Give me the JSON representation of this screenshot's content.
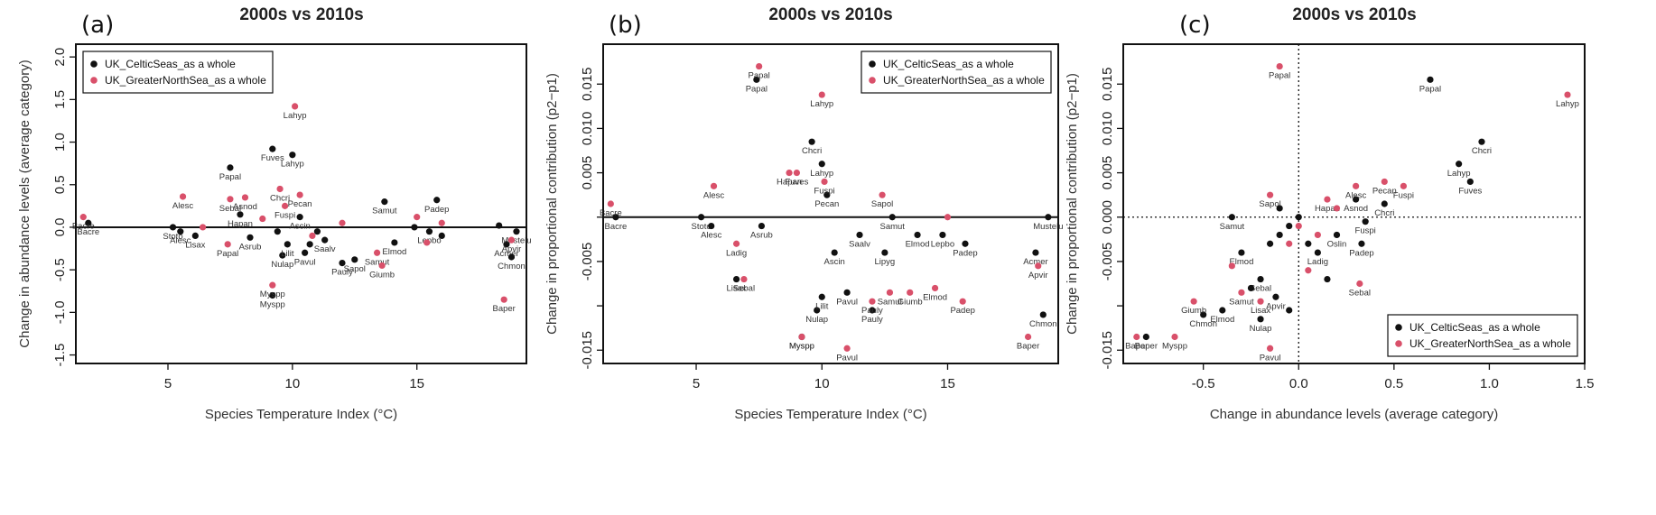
{
  "colors": {
    "celtic": "#111111",
    "northsea": "#d9506a",
    "axis": "#111111",
    "text": "#333333"
  },
  "legend": {
    "celtic": "UK_CelticSeas_as a whole",
    "northsea": "UK_GreaterNorthSea_as a whole"
  },
  "chart_data": [
    {
      "type": "scatter",
      "panel_label": "(a)",
      "title": "2000s vs 2010s",
      "xlabel": "Species Temperature Index (°C)",
      "ylabel": "Change in abundance levels (average category)",
      "xlim": [
        1.3,
        19.4
      ],
      "ylim": [
        -1.6,
        2.15
      ],
      "xticks": [
        5,
        10,
        15
      ],
      "yticks": [
        -1.5,
        -1.0,
        -0.5,
        0.0,
        0.5,
        1.0,
        1.5,
        2.0
      ],
      "yticklabels": [
        "-1.5",
        "-1.0",
        "-0.5",
        "0.0",
        "0.5",
        "1.0",
        "1.5",
        "2.0"
      ],
      "hline": 0,
      "legend_position": "top-left",
      "series": [
        {
          "name": "UK_CelticSeas_as a whole",
          "color": "celtic",
          "points": [
            {
              "x": 1.8,
              "y": 0.05,
              "label": "Bacre"
            },
            {
              "x": 5.2,
              "y": 0.0,
              "label": "Stoto"
            },
            {
              "x": 5.5,
              "y": -0.05,
              "label": "Alesc"
            },
            {
              "x": 6.1,
              "y": -0.1,
              "label": "Lisax"
            },
            {
              "x": 7.5,
              "y": 0.7,
              "label": "Papal"
            },
            {
              "x": 7.9,
              "y": 0.15,
              "label": "Hapan"
            },
            {
              "x": 8.3,
              "y": -0.12,
              "label": "Asrub"
            },
            {
              "x": 9.2,
              "y": 0.92,
              "label": "Fuves"
            },
            {
              "x": 9.4,
              "y": -0.05
            },
            {
              "x": 9.6,
              "y": -0.33,
              "label": "Nulap"
            },
            {
              "x": 9.8,
              "y": -0.2,
              "label": "Lilit"
            },
            {
              "x": 9.2,
              "y": -0.8,
              "label": "Myspp"
            },
            {
              "x": 10.0,
              "y": 0.85,
              "label": "Lahyp"
            },
            {
              "x": 10.3,
              "y": 0.12,
              "label": "Ascin"
            },
            {
              "x": 10.5,
              "y": -0.3,
              "label": "Pavul"
            },
            {
              "x": 10.7,
              "y": -0.2
            },
            {
              "x": 11.0,
              "y": -0.05
            },
            {
              "x": 11.3,
              "y": -0.15,
              "label": "Saalv"
            },
            {
              "x": 12.0,
              "y": -0.42,
              "label": "Pauly"
            },
            {
              "x": 12.5,
              "y": -0.38,
              "label": "Sapol"
            },
            {
              "x": 13.7,
              "y": 0.3,
              "label": "Samut"
            },
            {
              "x": 14.1,
              "y": -0.18,
              "label": "Elmod"
            },
            {
              "x": 14.9,
              "y": 0.0
            },
            {
              "x": 15.5,
              "y": -0.05,
              "label": "Lepbo"
            },
            {
              "x": 15.8,
              "y": 0.32,
              "label": "Padep"
            },
            {
              "x": 16.0,
              "y": -0.1
            },
            {
              "x": 18.3,
              "y": 0.02
            },
            {
              "x": 18.6,
              "y": -0.2,
              "label": "Acmer"
            },
            {
              "x": 18.8,
              "y": -0.35,
              "label": "Chmon"
            },
            {
              "x": 19.0,
              "y": -0.05,
              "label": "Mustelu"
            }
          ]
        },
        {
          "name": "UK_GreaterNorthSea_as a whole",
          "color": "northsea",
          "points": [
            {
              "x": 1.6,
              "y": 0.12,
              "label": "Bacre"
            },
            {
              "x": 5.6,
              "y": 0.36,
              "label": "Alesc"
            },
            {
              "x": 6.4,
              "y": 0.0
            },
            {
              "x": 7.4,
              "y": -0.2,
              "label": "Papal"
            },
            {
              "x": 7.5,
              "y": 0.33,
              "label": "Sebal"
            },
            {
              "x": 8.1,
              "y": 0.35,
              "label": "Asnod"
            },
            {
              "x": 8.8,
              "y": 0.1
            },
            {
              "x": 9.5,
              "y": 0.45,
              "label": "Chcri"
            },
            {
              "x": 9.7,
              "y": 0.25,
              "label": "Fuspi"
            },
            {
              "x": 10.1,
              "y": 1.42,
              "label": "Lahyp"
            },
            {
              "x": 10.3,
              "y": 0.38,
              "label": "Pecan"
            },
            {
              "x": 9.2,
              "y": -0.68,
              "label": "Myspp"
            },
            {
              "x": 10.8,
              "y": -0.1
            },
            {
              "x": 12.0,
              "y": 0.05
            },
            {
              "x": 13.4,
              "y": -0.3,
              "label": "Samut"
            },
            {
              "x": 13.6,
              "y": -0.45,
              "label": "Giumb"
            },
            {
              "x": 15.0,
              "y": 0.12
            },
            {
              "x": 15.4,
              "y": -0.18
            },
            {
              "x": 16.0,
              "y": 0.05
            },
            {
              "x": 18.5,
              "y": -0.85,
              "label": "Baper"
            },
            {
              "x": 18.8,
              "y": -0.15,
              "label": "Apvir"
            }
          ]
        }
      ]
    },
    {
      "type": "scatter",
      "panel_label": "(b)",
      "title": "2000s vs 2010s",
      "xlabel": "Species Temperature Index (°C)",
      "ylabel": "Change in proportional contribution (p2−p1)",
      "xlim": [
        1.3,
        19.4
      ],
      "ylim": [
        -0.0165,
        0.0195
      ],
      "xticks": [
        5,
        10,
        15
      ],
      "yticks": [
        -0.015,
        -0.01,
        -0.005,
        0.0,
        0.005,
        0.01,
        0.015
      ],
      "yticklabels": [
        "-0.015",
        "",
        "-0.005",
        "",
        "0.005",
        "0.010",
        "0.015"
      ],
      "hline": 0,
      "legend_position": "top-right",
      "series": [
        {
          "name": "UK_CelticSeas_as a whole",
          "color": "celtic",
          "points": [
            {
              "x": 1.8,
              "y": 0.0,
              "label": "Bacre"
            },
            {
              "x": 5.2,
              "y": 0.0,
              "label": "Stoto"
            },
            {
              "x": 5.6,
              "y": -0.001,
              "label": "Alesc"
            },
            {
              "x": 6.6,
              "y": -0.007,
              "label": "Lisax"
            },
            {
              "x": 7.4,
              "y": 0.0155,
              "label": "Papal"
            },
            {
              "x": 7.6,
              "y": -0.001,
              "label": "Asrub"
            },
            {
              "x": 9.2,
              "y": -0.0135,
              "label": "Myspp"
            },
            {
              "x": 9.6,
              "y": 0.0085,
              "label": "Chcri"
            },
            {
              "x": 9.8,
              "y": -0.0105,
              "label": "Nulap"
            },
            {
              "x": 10.0,
              "y": 0.006,
              "label": "Lahyp"
            },
            {
              "x": 10.2,
              "y": 0.0025,
              "label": "Pecan"
            },
            {
              "x": 10.0,
              "y": -0.009,
              "label": "Lilit"
            },
            {
              "x": 10.5,
              "y": -0.004,
              "label": "Ascin"
            },
            {
              "x": 11.0,
              "y": -0.0085,
              "label": "Pavul"
            },
            {
              "x": 11.5,
              "y": -0.002,
              "label": "Saalv"
            },
            {
              "x": 12.0,
              "y": -0.0105,
              "label": "Pauly"
            },
            {
              "x": 12.5,
              "y": -0.004,
              "label": "Lipyg"
            },
            {
              "x": 12.8,
              "y": 0.0,
              "label": "Samut"
            },
            {
              "x": 13.8,
              "y": -0.002,
              "label": "Elmod"
            },
            {
              "x": 14.8,
              "y": -0.002,
              "label": "Lepbo"
            },
            {
              "x": 15.7,
              "y": -0.003,
              "label": "Padep"
            },
            {
              "x": 18.5,
              "y": -0.004,
              "label": "Acmer"
            },
            {
              "x": 18.8,
              "y": -0.011,
              "label": "Chmon"
            },
            {
              "x": 19.0,
              "y": 0.0,
              "label": "Mustelu"
            }
          ]
        },
        {
          "name": "UK_GreaterNorthSea_as a whole",
          "color": "northsea",
          "points": [
            {
              "x": 1.6,
              "y": 0.0015,
              "label": "Bacre"
            },
            {
              "x": 5.7,
              "y": 0.0035,
              "label": "Alesc"
            },
            {
              "x": 6.6,
              "y": -0.003,
              "label": "Ladig"
            },
            {
              "x": 6.9,
              "y": -0.007,
              "label": "Sebal"
            },
            {
              "x": 7.5,
              "y": 0.017,
              "label": "Papal"
            },
            {
              "x": 8.7,
              "y": 0.005,
              "label": "Hapan"
            },
            {
              "x": 9.0,
              "y": 0.005,
              "label": "Fuves"
            },
            {
              "x": 10.0,
              "y": 0.0138,
              "label": "Lahyp"
            },
            {
              "x": 10.1,
              "y": 0.004,
              "label": "Fuspi"
            },
            {
              "x": 9.2,
              "y": -0.0135,
              "label": "Myspp"
            },
            {
              "x": 11.0,
              "y": -0.0148,
              "label": "Pavul"
            },
            {
              "x": 12.4,
              "y": 0.0025,
              "label": "Sapol"
            },
            {
              "x": 12.0,
              "y": -0.0095,
              "label": "Pauly"
            },
            {
              "x": 12.7,
              "y": -0.0085,
              "label": "Samut"
            },
            {
              "x": 13.5,
              "y": -0.0085,
              "label": "Giumb"
            },
            {
              "x": 14.5,
              "y": -0.008,
              "label": "Elmod"
            },
            {
              "x": 15.0,
              "y": 0.0
            },
            {
              "x": 15.6,
              "y": -0.0095,
              "label": "Padep"
            },
            {
              "x": 18.2,
              "y": -0.0135,
              "label": "Baper"
            },
            {
              "x": 18.6,
              "y": -0.0055,
              "label": "Apvir"
            }
          ]
        }
      ]
    },
    {
      "type": "scatter",
      "panel_label": "(c)",
      "title": "2000s vs 2010s",
      "xlabel": "Change in abundance levels (average category)",
      "ylabel": "Change in proportional contribution (p2−p1)",
      "xlim": [
        -0.92,
        1.5
      ],
      "ylim": [
        -0.0165,
        0.0195
      ],
      "xticks": [
        -0.5,
        0.0,
        0.5,
        1.0,
        1.5
      ],
      "xticklabels": [
        "-0.5",
        "0.0",
        "0.5",
        "1.0",
        "1.5"
      ],
      "yticks": [
        -0.015,
        -0.01,
        -0.005,
        0.0,
        0.005,
        0.01,
        0.015
      ],
      "yticklabels": [
        "-0.015",
        "",
        "-0.005",
        "0.000",
        "0.005",
        "0.010",
        "0.015"
      ],
      "hline_dotted": 0,
      "vline_dotted": 0,
      "legend_position": "bottom-right",
      "series": [
        {
          "name": "UK_CelticSeas_as a whole",
          "color": "celtic",
          "points": [
            {
              "x": 0.69,
              "y": 0.0155,
              "label": "Papal"
            },
            {
              "x": 0.96,
              "y": 0.0085,
              "label": "Chcri"
            },
            {
              "x": 0.84,
              "y": 0.006,
              "label": "Lahyp"
            },
            {
              "x": 0.9,
              "y": 0.004,
              "label": "Fuves"
            },
            {
              "x": 0.45,
              "y": 0.0015,
              "label": "Chcri"
            },
            {
              "x": 0.35,
              "y": -0.0005,
              "label": "Fuspi"
            },
            {
              "x": 0.33,
              "y": -0.003,
              "label": "Padep"
            },
            {
              "x": 0.2,
              "y": -0.002,
              "label": "Oslin"
            },
            {
              "x": 0.3,
              "y": 0.002,
              "label": "Asnod"
            },
            {
              "x": -0.35,
              "y": 0.0,
              "label": "Samut"
            },
            {
              "x": -0.3,
              "y": -0.004,
              "label": "Elmod"
            },
            {
              "x": -0.2,
              "y": -0.007,
              "label": "Sebal"
            },
            {
              "x": -0.15,
              "y": -0.003
            },
            {
              "x": -0.1,
              "y": -0.002
            },
            {
              "x": -0.05,
              "y": -0.001
            },
            {
              "x": 0.0,
              "y": 0.0
            },
            {
              "x": 0.05,
              "y": -0.003
            },
            {
              "x": 0.1,
              "y": -0.004,
              "label": "Ladig"
            },
            {
              "x": -0.25,
              "y": -0.008
            },
            {
              "x": -0.12,
              "y": -0.009,
              "label": "Apvir"
            },
            {
              "x": -0.4,
              "y": -0.0105,
              "label": "Elmod"
            },
            {
              "x": -0.5,
              "y": -0.011,
              "label": "Chmon"
            },
            {
              "x": -0.8,
              "y": -0.0135,
              "label": "Baper"
            },
            {
              "x": -0.2,
              "y": -0.0115,
              "label": "Nulap"
            },
            {
              "x": -0.05,
              "y": -0.0105
            },
            {
              "x": 0.15,
              "y": -0.007
            },
            {
              "x": -0.1,
              "y": 0.001
            }
          ]
        },
        {
          "name": "UK_GreaterNorthSea_as a whole",
          "color": "northsea",
          "points": [
            {
              "x": -0.1,
              "y": 0.017,
              "label": "Papal"
            },
            {
              "x": 1.41,
              "y": 0.0138,
              "label": "Lahyp"
            },
            {
              "x": 0.55,
              "y": 0.0035,
              "label": "Fuspi"
            },
            {
              "x": 0.45,
              "y": 0.004,
              "label": "Pecan"
            },
            {
              "x": 0.3,
              "y": 0.0035,
              "label": "Alesc"
            },
            {
              "x": 0.15,
              "y": 0.002,
              "label": "Hapan"
            },
            {
              "x": -0.15,
              "y": 0.0025,
              "label": "Sapol"
            },
            {
              "x": 0.32,
              "y": -0.0075,
              "label": "Sebal"
            },
            {
              "x": -0.15,
              "y": -0.0148,
              "label": "Pavul"
            },
            {
              "x": -0.85,
              "y": -0.0135,
              "label": "Baper"
            },
            {
              "x": -0.65,
              "y": -0.0135,
              "label": "Myspp"
            },
            {
              "x": -0.55,
              "y": -0.0095,
              "label": "Giumb"
            },
            {
              "x": -0.3,
              "y": -0.0085,
              "label": "Samut"
            },
            {
              "x": -0.2,
              "y": -0.0095,
              "label": "Lisax"
            },
            {
              "x": 0.05,
              "y": -0.006
            },
            {
              "x": 0.1,
              "y": -0.002
            },
            {
              "x": 0.0,
              "y": -0.001
            },
            {
              "x": -0.05,
              "y": -0.003
            },
            {
              "x": -0.35,
              "y": -0.0055
            },
            {
              "x": 0.2,
              "y": 0.001
            }
          ]
        }
      ]
    }
  ]
}
